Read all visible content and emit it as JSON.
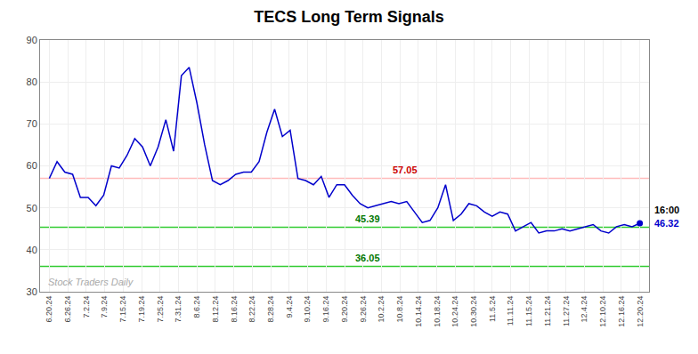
{
  "chart_data": {
    "type": "line",
    "title": "TECS Long Term Signals",
    "color": "#0000cc",
    "grid": true,
    "x": [
      0,
      0.421053,
      0.842105,
      1.263158,
      1.684211,
      2.105263,
      2.526316,
      2.947368,
      3.368421,
      3.789474,
      4.210526,
      4.631579,
      5.052632,
      5.473684,
      5.894737,
      6.315789,
      6.736842,
      7.157895,
      7.578947,
      8,
      8.421053,
      8.842105,
      9.263158,
      9.684211,
      10.105263,
      10.526316,
      10.947368,
      11.368421,
      11.789474,
      12.210526,
      12.631579,
      13.052632,
      13.473684,
      13.894737,
      14.315789,
      14.736842,
      15.157895,
      15.578947,
      16,
      16.421053,
      16.842105,
      17.263158,
      17.684211,
      18.105263,
      18.526316,
      18.947368,
      19.368421,
      19.789474,
      20.210526,
      20.631579,
      21.052632,
      21.473684,
      21.894737,
      22.315789,
      22.736842,
      23.157895,
      23.578947,
      24,
      24.421053,
      24.842105,
      25.263158,
      25.684211,
      26.105263,
      26.526316,
      26.947368,
      27.368421,
      27.789474,
      28.210526,
      28.631579,
      29.052632,
      29.473684,
      29.894737,
      30.315789,
      30.736842,
      31.157895,
      31.578947,
      32
    ],
    "values": [
      57.0,
      61.0,
      58.5,
      58.0,
      52.5,
      52.5,
      50.5,
      53.0,
      60.0,
      59.5,
      62.5,
      66.5,
      64.5,
      60.0,
      64.5,
      71.0,
      63.5,
      81.5,
      83.5,
      75.0,
      65.0,
      56.5,
      55.5,
      56.5,
      58.0,
      58.5,
      58.5,
      61.0,
      68.0,
      73.5,
      67.0,
      68.5,
      57.0,
      56.5,
      55.5,
      57.5,
      52.5,
      55.5,
      55.5,
      53.0,
      51.0,
      50.0,
      50.5,
      51.0,
      51.5,
      51.0,
      51.5,
      49.0,
      46.5,
      47.0,
      50.0,
      55.5,
      47.0,
      48.5,
      51.0,
      50.5,
      49.0,
      48.0,
      49.0,
      48.5,
      44.5,
      45.5,
      46.5,
      44.0,
      44.5,
      44.5,
      45.0,
      44.5,
      45.0,
      45.5,
      46.0,
      44.5,
      44.0,
      45.5,
      46.0,
      45.5,
      46.32
    ],
    "xlim": [
      -0.5,
      32.5
    ],
    "xticks": [
      {
        "value": 0,
        "label": "6.20.24"
      },
      {
        "value": 1,
        "label": "6.26.24"
      },
      {
        "value": 2,
        "label": "7.2.24"
      },
      {
        "value": 3,
        "label": "7.9.24"
      },
      {
        "value": 4,
        "label": "7.15.24"
      },
      {
        "value": 5,
        "label": "7.19.24"
      },
      {
        "value": 6,
        "label": "7.25.24"
      },
      {
        "value": 7,
        "label": "7.31.24"
      },
      {
        "value": 8,
        "label": "8.6.24"
      },
      {
        "value": 9,
        "label": "8.12.24"
      },
      {
        "value": 10,
        "label": "8.16.24"
      },
      {
        "value": 11,
        "label": "8.22.24"
      },
      {
        "value": 12,
        "label": "8.28.24"
      },
      {
        "value": 13,
        "label": "9.4.24"
      },
      {
        "value": 14,
        "label": "9.10.24"
      },
      {
        "value": 15,
        "label": "9.16.24"
      },
      {
        "value": 16,
        "label": "9.20.24"
      },
      {
        "value": 17,
        "label": "9.26.24"
      },
      {
        "value": 18,
        "label": "10.2.24"
      },
      {
        "value": 19,
        "label": "10.8.24"
      },
      {
        "value": 20,
        "label": "10.14.24"
      },
      {
        "value": 21,
        "label": "10.18.24"
      },
      {
        "value": 22,
        "label": "10.24.24"
      },
      {
        "value": 23,
        "label": "10.30.24"
      },
      {
        "value": 24,
        "label": "11.5.24"
      },
      {
        "value": 25,
        "label": "11.11.24"
      },
      {
        "value": 26,
        "label": "11.15.24"
      },
      {
        "value": 27,
        "label": "11.21.24"
      },
      {
        "value": 28,
        "label": "11.27.24"
      },
      {
        "value": 29,
        "label": "12.4.24"
      },
      {
        "value": 30,
        "label": "12.10.24"
      },
      {
        "value": 31,
        "label": "12.16.24"
      },
      {
        "value": 32,
        "label": "12.20.24"
      }
    ],
    "ylim": [
      30,
      90
    ],
    "yticks": [
      30,
      40,
      50,
      60,
      70,
      80,
      90
    ],
    "annotations": [
      {
        "text": "57.05",
        "y": 57.05,
        "color": "#cc0000",
        "line_color": "#ffbbbb"
      },
      {
        "text": "45.39",
        "y": 45.39,
        "color": "#007700",
        "line_color": "#33cc33"
      },
      {
        "text": "36.05",
        "y": 36.05,
        "color": "#007700",
        "line_color": "#33cc33"
      }
    ],
    "end_label": {
      "text": "16:00",
      "color": "#000000"
    },
    "end_value_label": {
      "text": "46.32",
      "color": "#0000cc"
    },
    "watermark": {
      "text": "Stock Traders Daily",
      "color": "#aaaaaa"
    }
  }
}
